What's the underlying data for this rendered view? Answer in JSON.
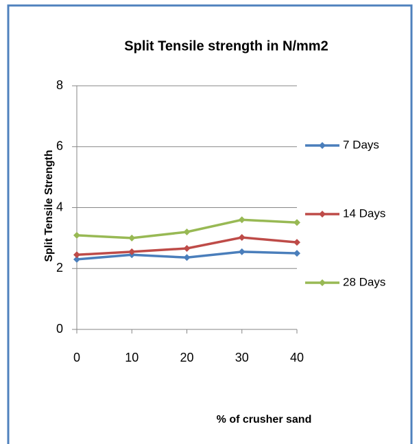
{
  "chart_data": {
    "type": "line",
    "title": "Split Tensile strength in N/mm2",
    "x_label": "% of crusher sand",
    "y_label": "Split Tensile  Strength",
    "x": [
      0,
      10,
      20,
      30,
      40
    ],
    "series": [
      {
        "name": "7 Days",
        "color": "#4a7ebb",
        "values": [
          2.3,
          2.45,
          2.36,
          2.55,
          2.5
        ]
      },
      {
        "name": "14 Days",
        "color": "#be4b48",
        "values": [
          2.45,
          2.55,
          2.66,
          3.02,
          2.86
        ]
      },
      {
        "name": "28 Days",
        "color": "#98b954",
        "values": [
          3.09,
          3.0,
          3.2,
          3.6,
          3.51
        ]
      }
    ],
    "xlim": [
      0,
      40
    ],
    "xticks": [
      0,
      10,
      20,
      30,
      40
    ],
    "ylim": [
      0,
      8
    ],
    "yticks": [
      0,
      2,
      4,
      6,
      8
    ],
    "grid": true,
    "legend": "right"
  }
}
